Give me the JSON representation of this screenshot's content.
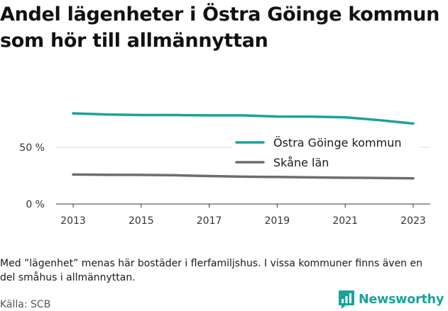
{
  "title": "Andel lägenheter i Östra Göinge kommun som hör till allmännyttan",
  "note": "Med ”lägenhet” menas här bostäder i flerfamiljshus. I vissa kommuner finns även en del småhus i allmännyttan.",
  "source": "Källa: SCB",
  "brand": {
    "name": "Newsworthy",
    "color": "#19a39a",
    "icon": "bar-chart-speech-bubble-icon"
  },
  "chart_data": {
    "type": "line",
    "title": "Andel lägenheter i Östra Göinge kommun som hör till allmännyttan",
    "xlabel": "",
    "ylabel": "",
    "x": [
      2013,
      2014,
      2015,
      2016,
      2017,
      2018,
      2019,
      2020,
      2021,
      2022,
      2023
    ],
    "x_ticks": [
      "2013",
      "2015",
      "2017",
      "2019",
      "2021",
      "2023"
    ],
    "y_ticks": [
      "0 %",
      "50 %"
    ],
    "y_tick_values": [
      0,
      50
    ],
    "ylim": [
      0,
      100
    ],
    "grid": "horizontal",
    "legend_position": "right",
    "series": [
      {
        "name": "Östra Göinge kommun",
        "color": "#19a39a",
        "values": [
          80,
          79,
          78.5,
          78.5,
          78.2,
          78.2,
          77.2,
          77.1,
          76.5,
          74,
          71
        ]
      },
      {
        "name": "Skåne län",
        "color": "#6d6d6d",
        "values": [
          26,
          25.8,
          25.7,
          25.4,
          24.7,
          24.1,
          23.9,
          23.5,
          23.2,
          23,
          22.6
        ]
      }
    ]
  }
}
